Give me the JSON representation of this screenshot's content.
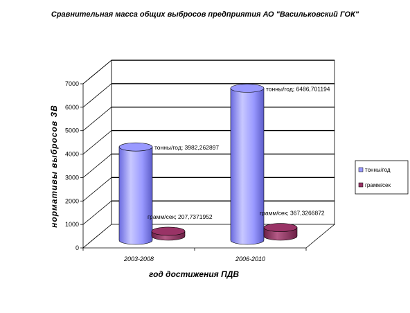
{
  "chart_data": {
    "type": "bar",
    "title": "Сравнительная масса общих выбросов предприятия АО \"Васильковский ГОК\"",
    "xlabel": "год достижения ПДВ",
    "ylabel": "нормативы выбросов ЗВ",
    "categories": [
      "2003-2008",
      "2006-2010"
    ],
    "ylim": [
      0,
      7000
    ],
    "yticks": [
      "0",
      "1000",
      "2000",
      "3000",
      "4000",
      "5000",
      "6000",
      "7000"
    ],
    "series": [
      {
        "name": "тонны/год",
        "values": [
          3982.262897,
          6486.701194
        ],
        "labels": [
          "тонны/год; 3982,262897",
          "тонны/год; 6486,701194"
        ],
        "color": "#9999ff"
      },
      {
        "name": "грамм/сек",
        "values": [
          207.7371952,
          367.3266872
        ],
        "labels": [
          "грамм/сек; 207,7371952",
          "грамм/сек; 367,3266872"
        ],
        "color": "#993366"
      }
    ],
    "grid": true,
    "legend": "right"
  }
}
